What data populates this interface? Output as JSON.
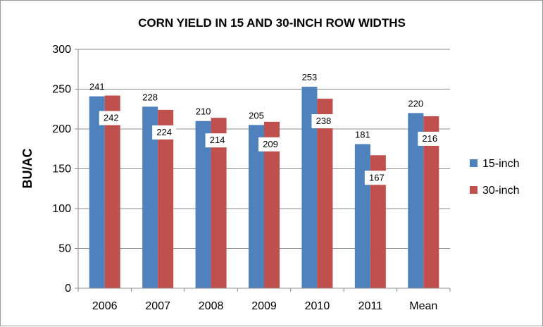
{
  "chart_data": {
    "type": "bar",
    "title": "CORN YIELD IN 15 AND 30-INCH ROW WIDTHS",
    "xlabel": "",
    "ylabel": "BU/AC",
    "ylim": [
      0,
      300
    ],
    "yticks": [
      0,
      50,
      100,
      150,
      200,
      250,
      300
    ],
    "grid": true,
    "legend_position": "right",
    "categories": [
      "2006",
      "2007",
      "2008",
      "2009",
      "2010",
      "2011",
      "Mean"
    ],
    "series": [
      {
        "name": "15-inch",
        "color": "#4F81BD",
        "values": [
          241,
          228,
          210,
          205,
          253,
          181,
          220
        ]
      },
      {
        "name": "30-inch",
        "color": "#C0504D",
        "values": [
          242,
          224,
          214,
          209,
          238,
          167,
          216
        ]
      }
    ]
  }
}
